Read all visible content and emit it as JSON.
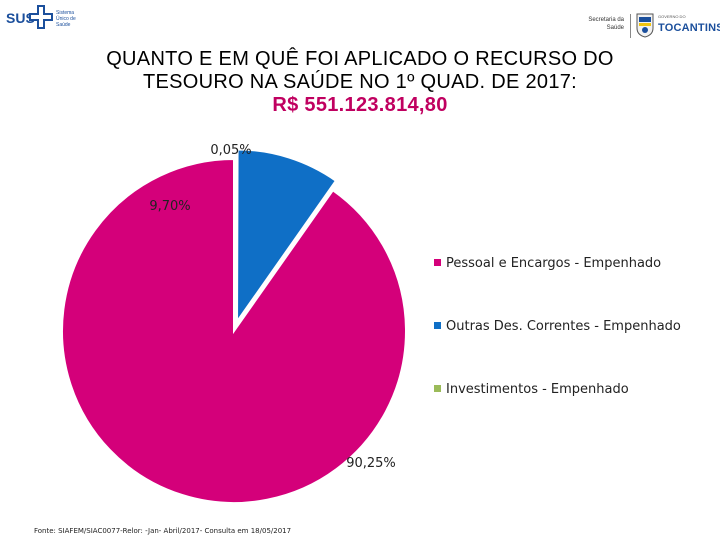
{
  "header": {
    "sus_logo_text": "SUS",
    "sus_logo_subtext": "Sistema Único de Saúde",
    "gov_secretaria": "Secretaria da Saúde",
    "gov_small": "GOVERNO DO",
    "gov_name": "TOCANTINS"
  },
  "title_line1": "QUANTO E EM QUÊ FOI APLICADO O RECURSO DO",
  "title_line2": "TESOURO NA SAÚDE NO 1º QUAD. DE 2017:",
  "title_amount": "R$ 551.123.814,80",
  "source": "Fonte: SIAFEM/SIAC0077-Relor: -Jan- Abril/2017- Consulta em 18/05/2017",
  "colors": {
    "pessoal": "#d4007a",
    "outras": "#0f6fc6",
    "investimentos": "#9bbb59"
  },
  "chart_data": {
    "type": "pie",
    "title": "",
    "slices": [
      {
        "name": "Pessoal e Encargos - Empenhado",
        "value": 90.25,
        "label": "90,25%",
        "color": "#d4007a"
      },
      {
        "name": "Outras Des. Correntes - Empenhado",
        "value": 9.7,
        "label": "9,70%",
        "color": "#0f6fc6"
      },
      {
        "name": "Investimentos - Empenhado",
        "value": 0.05,
        "label": "0,05%",
        "color": "#9bbb59"
      }
    ],
    "legend_position": "right"
  }
}
